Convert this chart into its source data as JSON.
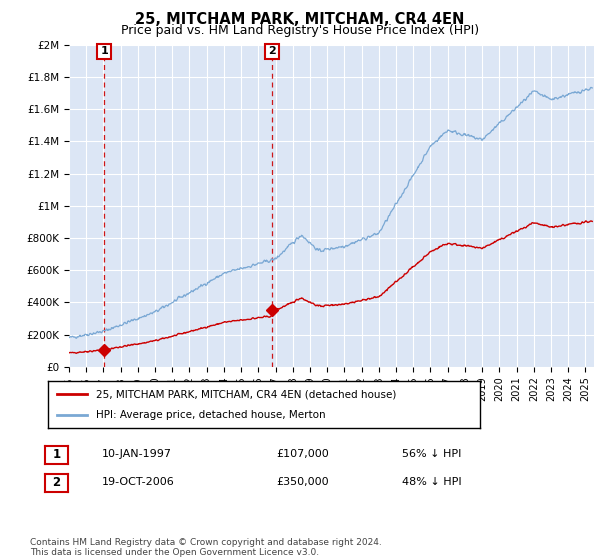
{
  "title": "25, MITCHAM PARK, MITCHAM, CR4 4EN",
  "subtitle": "Price paid vs. HM Land Registry's House Price Index (HPI)",
  "ylim": [
    0,
    2000000
  ],
  "yticks": [
    0,
    200000,
    400000,
    600000,
    800000,
    1000000,
    1200000,
    1400000,
    1600000,
    1800000,
    2000000
  ],
  "ytick_labels": [
    "£0",
    "£200K",
    "£400K",
    "£600K",
    "£800K",
    "£1M",
    "£1.2M",
    "£1.4M",
    "£1.6M",
    "£1.8M",
    "£2M"
  ],
  "xlim_start": 1995.0,
  "xlim_end": 2025.5,
  "fig_bg": "#ffffff",
  "plot_bg": "#dce6f5",
  "grid_color": "#ffffff",
  "hpi_color": "#7aa8d4",
  "price_color": "#cc0000",
  "dashed_color": "#cc0000",
  "sale1_x": 1997.04,
  "sale1_y": 107000,
  "sale2_x": 2006.8,
  "sale2_y": 350000,
  "legend_line1": "25, MITCHAM PARK, MITCHAM, CR4 4EN (detached house)",
  "legend_line2": "HPI: Average price, detached house, Merton",
  "row1_num": "1",
  "row1_date": "10-JAN-1997",
  "row1_price": "£107,000",
  "row1_hpi": "56% ↓ HPI",
  "row2_num": "2",
  "row2_date": "19-OCT-2006",
  "row2_price": "£350,000",
  "row2_hpi": "48% ↓ HPI",
  "footer": "Contains HM Land Registry data © Crown copyright and database right 2024.\nThis data is licensed under the Open Government Licence v3.0."
}
